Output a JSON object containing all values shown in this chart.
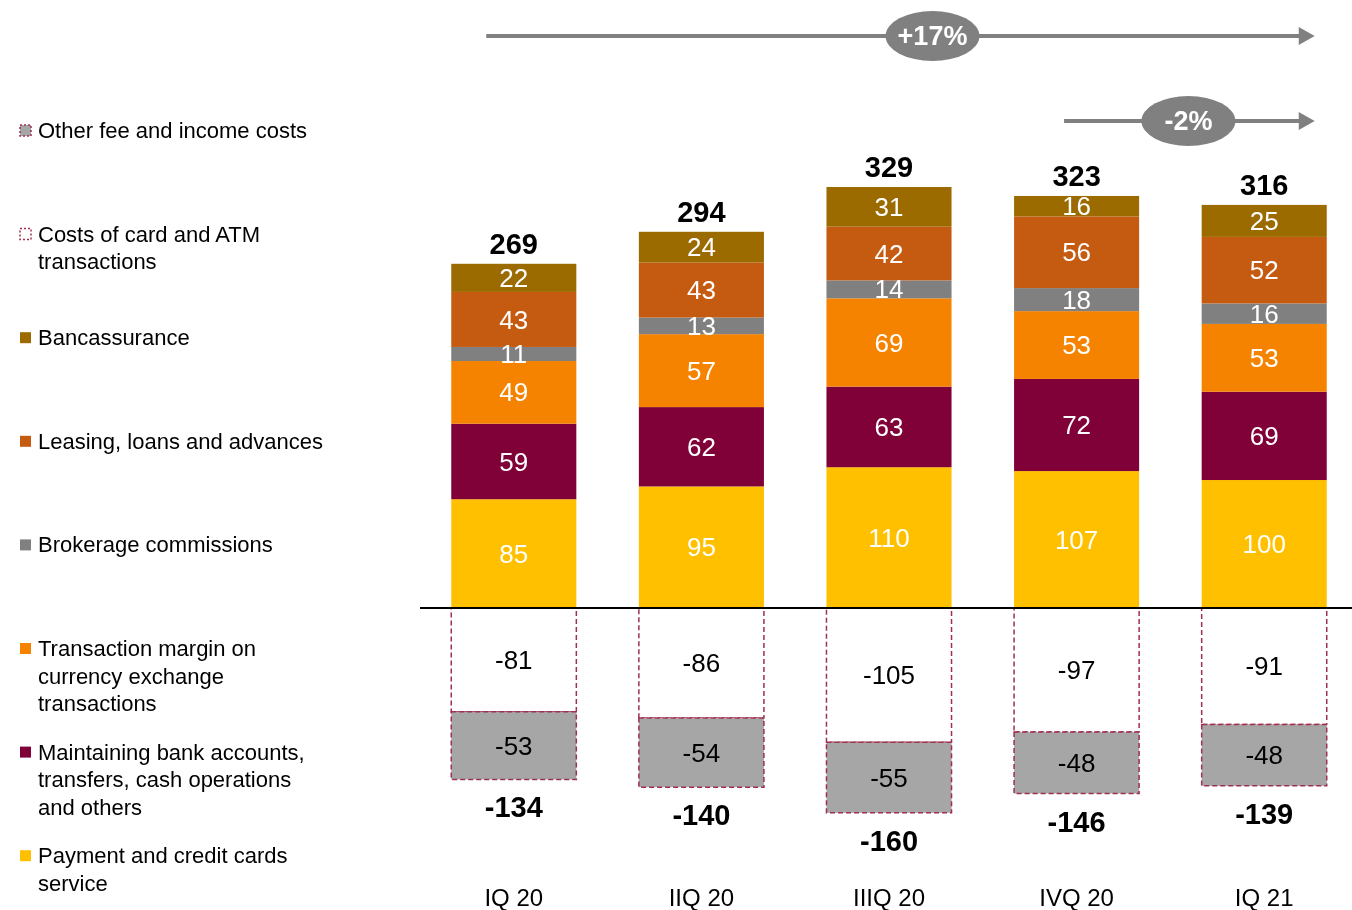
{
  "chart_data": {
    "type": "bar",
    "stacked": true,
    "data_labels": true,
    "legend": "left",
    "categories": [
      "IQ 20",
      "IIQ 20",
      "IIIQ 20",
      "IVQ 20",
      "IQ 21"
    ],
    "series": [
      {
        "name": "Payment and credit cards service",
        "color": "#ffc000",
        "values": [
          85,
          95,
          110,
          107,
          100
        ]
      },
      {
        "name": "Maintaining bank accounts, transfers, cash operations and others",
        "color": "#800038",
        "values": [
          59,
          62,
          63,
          72,
          69
        ]
      },
      {
        "name": "Transaction margin on currency exchange transactions",
        "color": "#f58300",
        "values": [
          49,
          57,
          69,
          53,
          53
        ]
      },
      {
        "name": "Brokerage commissions",
        "color": "#808080",
        "values": [
          11,
          13,
          14,
          18,
          16
        ]
      },
      {
        "name": "Leasing, loans and advances",
        "color": "#c55a11",
        "values": [
          43,
          43,
          42,
          56,
          52
        ]
      },
      {
        "name": "Bancassurance",
        "color": "#9c6b00",
        "values": [
          22,
          24,
          31,
          16,
          25
        ]
      },
      {
        "name": "Costs of card and ATM transactions",
        "color": "#ffffff",
        "values": [
          -81,
          -86,
          -105,
          -97,
          -91
        ]
      },
      {
        "name": "Other fee and income costs",
        "color": "#a6a6a6",
        "values": [
          -53,
          -54,
          -55,
          -48,
          -48
        ]
      }
    ],
    "ylim": [
      -160,
      329
    ],
    "totals": [
      [
        "269",
        "-134"
      ],
      [
        "294",
        "-140"
      ],
      [
        "329",
        "-160"
      ],
      [
        "323",
        "-146"
      ],
      [
        "316",
        "-139"
      ]
    ],
    "annotations": [
      "+17%",
      "-2%"
    ]
  }
}
